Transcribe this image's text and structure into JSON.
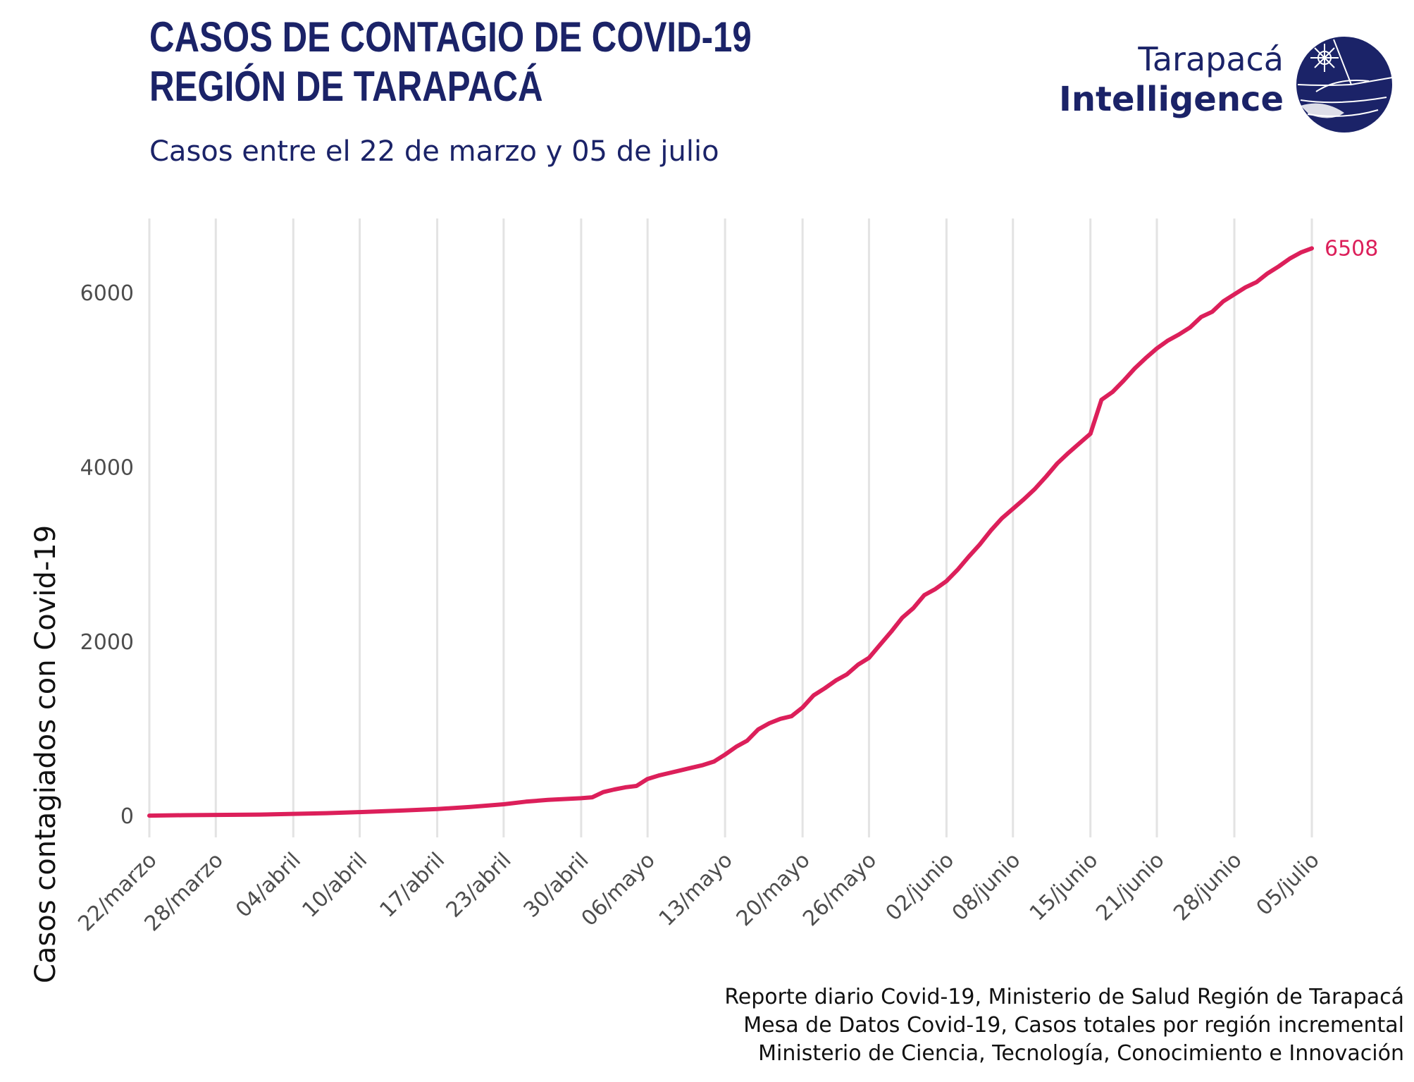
{
  "header": {
    "title_line1": "CASOS DE CONTAGIO DE COVID-19",
    "title_line2": "REGIÓN DE TARAPACÁ",
    "subtitle": "Casos entre el 22 de marzo y 05 de julio"
  },
  "logo": {
    "line1": "Tarapacá",
    "line2": "Intelligence",
    "icon": "tarapaca-globe-icon",
    "color": "#1b2368"
  },
  "caption": {
    "line1": "Reporte diario Covid-19, Ministerio de Salud Región de Tarapacá",
    "line2": "Mesa de Datos Covid-19, Casos totales por región incremental",
    "line3": "Ministerio de Ciencia, Tecnología, Conocimiento e Innovación"
  },
  "chart_data": {
    "type": "line",
    "xlabel": "",
    "ylabel": "Casos contagiados con Covid-19",
    "ylim": [
      -250,
      6850
    ],
    "xlim": [
      "2020-03-22",
      "2020-07-05"
    ],
    "grid": "vertical",
    "line_color": "#dc1f5a",
    "y_ticks": [
      0,
      2000,
      4000,
      6000
    ],
    "x_ticks": [
      {
        "date": "2020-03-22",
        "label": "22/marzo"
      },
      {
        "date": "2020-03-28",
        "label": "28/marzo"
      },
      {
        "date": "2020-04-04",
        "label": "04/abril"
      },
      {
        "date": "2020-04-10",
        "label": "10/abril"
      },
      {
        "date": "2020-04-17",
        "label": "17/abril"
      },
      {
        "date": "2020-04-23",
        "label": "23/abril"
      },
      {
        "date": "2020-04-30",
        "label": "30/abril"
      },
      {
        "date": "2020-05-06",
        "label": "06/mayo"
      },
      {
        "date": "2020-05-13",
        "label": "13/mayo"
      },
      {
        "date": "2020-05-20",
        "label": "20/mayo"
      },
      {
        "date": "2020-05-26",
        "label": "26/mayo"
      },
      {
        "date": "2020-06-02",
        "label": "02/junio"
      },
      {
        "date": "2020-06-08",
        "label": "08/junio"
      },
      {
        "date": "2020-06-15",
        "label": "15/junio"
      },
      {
        "date": "2020-06-21",
        "label": "21/junio"
      },
      {
        "date": "2020-06-28",
        "label": "28/junio"
      },
      {
        "date": "2020-07-05",
        "label": "05/julio"
      }
    ],
    "end_label": "6508",
    "series": [
      {
        "x": [
          "2020-03-22",
          "2020-03-25",
          "2020-03-28",
          "2020-04-01",
          "2020-04-04",
          "2020-04-07",
          "2020-04-10",
          "2020-04-14",
          "2020-04-17",
          "2020-04-20",
          "2020-04-23",
          "2020-04-25",
          "2020-04-27",
          "2020-04-30",
          "2020-05-01",
          "2020-05-02",
          "2020-05-03",
          "2020-05-04",
          "2020-05-05",
          "2020-05-06",
          "2020-05-07",
          "2020-05-08",
          "2020-05-09",
          "2020-05-10",
          "2020-05-11",
          "2020-05-12",
          "2020-05-13",
          "2020-05-14",
          "2020-05-15",
          "2020-05-16",
          "2020-05-17",
          "2020-05-18",
          "2020-05-19",
          "2020-05-20",
          "2020-05-21",
          "2020-05-22",
          "2020-05-23",
          "2020-05-24",
          "2020-05-25",
          "2020-05-26",
          "2020-05-27",
          "2020-05-28",
          "2020-05-29",
          "2020-05-30",
          "2020-05-31",
          "2020-06-01",
          "2020-06-02",
          "2020-06-03",
          "2020-06-04",
          "2020-06-05",
          "2020-06-06",
          "2020-06-07",
          "2020-06-08",
          "2020-06-09",
          "2020-06-10",
          "2020-06-11",
          "2020-06-12",
          "2020-06-13",
          "2020-06-14",
          "2020-06-15",
          "2020-06-16",
          "2020-06-17",
          "2020-06-18",
          "2020-06-19",
          "2020-06-20",
          "2020-06-21",
          "2020-06-22",
          "2020-06-23",
          "2020-06-24",
          "2020-06-25",
          "2020-06-26",
          "2020-06-27",
          "2020-06-28",
          "2020-06-29",
          "2020-06-30",
          "2020-07-01",
          "2020-07-02",
          "2020-07-03",
          "2020-07-04",
          "2020-07-05"
        ],
        "y": [
          0,
          5,
          8,
          12,
          20,
          28,
          40,
          60,
          75,
          100,
          130,
          160,
          180,
          200,
          210,
          270,
          300,
          325,
          340,
          420,
          460,
          490,
          520,
          550,
          580,
          620,
          700,
          790,
          860,
          990,
          1060,
          1110,
          1140,
          1240,
          1380,
          1460,
          1550,
          1620,
          1730,
          1810,
          1960,
          2110,
          2270,
          2380,
          2530,
          2600,
          2690,
          2820,
          2970,
          3110,
          3270,
          3410,
          3520,
          3630,
          3750,
          3890,
          4040,
          4160,
          4270,
          4380,
          4770,
          4860,
          4990,
          5130,
          5250,
          5360,
          5450,
          5520,
          5600,
          5720,
          5780,
          5900,
          5980,
          6060,
          6120,
          6220,
          6300,
          6390,
          6460,
          6508
        ]
      }
    ]
  }
}
